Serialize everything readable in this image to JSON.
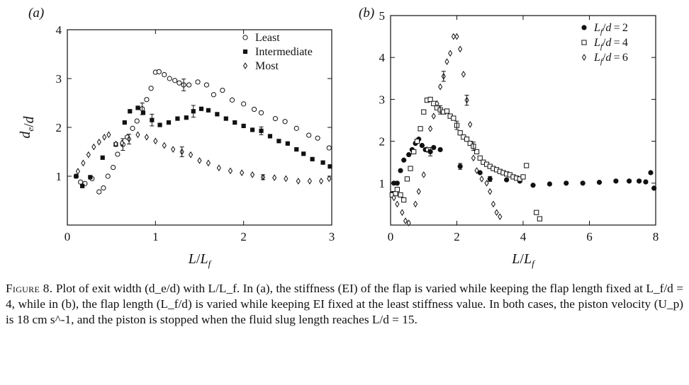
{
  "caption": {
    "label": "Figure 8.",
    "text": "Plot of exit width (d_e/d) with L/L_f. In (a), the stiffness (EI) of the flap is varied while keeping the flap length fixed at L_f/d = 4, while in (b), the flap length (L_f/d) is varied while keeping EI fixed at the least stiffness value. In both cases, the piston velocity (U_p) is 18 cm s^-1, and the piston is stopped when the fluid slug length reaches L/d = 15."
  },
  "chart_data": [
    {
      "type": "scatter",
      "panel_label": "(a)",
      "xlabel": "L/L_f",
      "ylabel": "d_e/d",
      "xlim": [
        0,
        3
      ],
      "ylim": [
        0,
        4
      ],
      "xticks": [
        0,
        1,
        2,
        3
      ],
      "yticks": [
        1,
        2,
        3,
        4
      ],
      "grid": false,
      "legend_position": "top-right",
      "series": [
        {
          "name": "Least",
          "marker": "circle-open",
          "points": [
            [
              0.1,
              1.0
            ],
            [
              0.15,
              0.88
            ],
            [
              0.2,
              0.85
            ],
            [
              0.28,
              0.95
            ],
            [
              0.36,
              0.68
            ],
            [
              0.41,
              0.76
            ],
            [
              0.46,
              1.0
            ],
            [
              0.52,
              1.18
            ],
            [
              0.57,
              1.45
            ],
            [
              0.63,
              1.65
            ],
            [
              0.68,
              1.8
            ],
            [
              0.74,
              1.98
            ],
            [
              0.79,
              2.13
            ],
            [
              0.85,
              2.38
            ],
            [
              0.9,
              2.57
            ],
            [
              0.95,
              2.8
            ],
            [
              1.0,
              3.13
            ],
            [
              1.04,
              3.14
            ],
            [
              1.1,
              3.08
            ],
            [
              1.16,
              3.0
            ],
            [
              1.22,
              2.96
            ],
            [
              1.27,
              2.91
            ],
            [
              1.32,
              2.87
            ],
            [
              1.38,
              2.87
            ],
            [
              1.48,
              2.93
            ],
            [
              1.58,
              2.87
            ],
            [
              1.66,
              2.67
            ],
            [
              1.76,
              2.76
            ],
            [
              1.87,
              2.56
            ],
            [
              2.0,
              2.48
            ],
            [
              2.12,
              2.37
            ],
            [
              2.2,
              2.3
            ],
            [
              2.36,
              2.18
            ],
            [
              2.47,
              2.12
            ],
            [
              2.6,
              1.98
            ],
            [
              2.74,
              1.84
            ],
            [
              2.84,
              1.78
            ],
            [
              2.97,
              1.58
            ]
          ],
          "error_bars": [
            [
              0.63,
              0.12
            ],
            [
              0.85,
              0.12
            ],
            [
              1.3,
              0.12
            ]
          ]
        },
        {
          "name": "Intermediate",
          "marker": "square-filled",
          "points": [
            [
              0.1,
              1.0
            ],
            [
              0.17,
              0.8
            ],
            [
              0.26,
              0.98
            ],
            [
              0.4,
              1.38
            ],
            [
              0.55,
              1.65
            ],
            [
              0.65,
              2.1
            ],
            [
              0.71,
              2.33
            ],
            [
              0.8,
              2.4
            ],
            [
              0.86,
              2.3
            ],
            [
              0.96,
              2.15
            ],
            [
              1.05,
              2.05
            ],
            [
              1.15,
              2.1
            ],
            [
              1.25,
              2.18
            ],
            [
              1.35,
              2.2
            ],
            [
              1.43,
              2.33
            ],
            [
              1.52,
              2.38
            ],
            [
              1.6,
              2.35
            ],
            [
              1.7,
              2.27
            ],
            [
              1.8,
              2.18
            ],
            [
              1.9,
              2.1
            ],
            [
              2.0,
              2.03
            ],
            [
              2.1,
              1.95
            ],
            [
              2.2,
              1.93
            ],
            [
              2.3,
              1.82
            ],
            [
              2.4,
              1.72
            ],
            [
              2.5,
              1.67
            ],
            [
              2.6,
              1.55
            ],
            [
              2.68,
              1.46
            ],
            [
              2.78,
              1.35
            ],
            [
              2.9,
              1.28
            ],
            [
              2.98,
              1.2
            ]
          ],
          "error_bars": [
            [
              0.96,
              0.12
            ],
            [
              1.43,
              0.12
            ],
            [
              2.2,
              0.08
            ]
          ]
        },
        {
          "name": "Most",
          "marker": "diamond-open",
          "points": [
            [
              0.12,
              1.1
            ],
            [
              0.18,
              1.27
            ],
            [
              0.24,
              1.44
            ],
            [
              0.3,
              1.6
            ],
            [
              0.36,
              1.7
            ],
            [
              0.42,
              1.8
            ],
            [
              0.47,
              1.85
            ],
            [
              0.55,
              1.66
            ],
            [
              0.62,
              1.68
            ],
            [
              0.7,
              1.76
            ],
            [
              0.8,
              1.85
            ],
            [
              0.9,
              1.8
            ],
            [
              1.0,
              1.72
            ],
            [
              1.1,
              1.63
            ],
            [
              1.2,
              1.55
            ],
            [
              1.3,
              1.5
            ],
            [
              1.4,
              1.44
            ],
            [
              1.5,
              1.32
            ],
            [
              1.6,
              1.27
            ],
            [
              1.72,
              1.17
            ],
            [
              1.85,
              1.11
            ],
            [
              1.98,
              1.07
            ],
            [
              2.1,
              1.03
            ],
            [
              2.22,
              0.98
            ],
            [
              2.35,
              0.97
            ],
            [
              2.48,
              0.95
            ],
            [
              2.62,
              0.9
            ],
            [
              2.75,
              0.9
            ],
            [
              2.88,
              0.9
            ],
            [
              2.97,
              0.95
            ]
          ],
          "error_bars": [
            [
              0.7,
              0.1
            ],
            [
              1.3,
              0.1
            ],
            [
              2.22,
              0.05
            ]
          ]
        }
      ]
    },
    {
      "type": "scatter",
      "panel_label": "(b)",
      "xlabel": "L/L_f",
      "ylabel": "",
      "xlim": [
        0,
        8
      ],
      "ylim": [
        0,
        5
      ],
      "xticks": [
        0,
        2,
        4,
        6,
        8
      ],
      "yticks": [
        1,
        2,
        3,
        4,
        5
      ],
      "grid": false,
      "legend_position": "top-right",
      "series": [
        {
          "name": "L_f/d = 2",
          "marker": "circle-filled",
          "points": [
            [
              0.05,
              0.75
            ],
            [
              0.1,
              1.0
            ],
            [
              0.2,
              1.0
            ],
            [
              0.3,
              1.3
            ],
            [
              0.4,
              1.55
            ],
            [
              0.55,
              1.68
            ],
            [
              0.65,
              1.8
            ],
            [
              0.75,
              1.95
            ],
            [
              0.85,
              2.05
            ],
            [
              0.95,
              1.9
            ],
            [
              1.05,
              1.8
            ],
            [
              1.2,
              1.75
            ],
            [
              1.3,
              1.85
            ],
            [
              1.5,
              1.8
            ],
            [
              2.1,
              1.4
            ],
            [
              2.7,
              1.25
            ],
            [
              3.0,
              1.1
            ],
            [
              3.5,
              1.08
            ],
            [
              3.9,
              1.05
            ],
            [
              4.3,
              0.95
            ],
            [
              4.8,
              0.98
            ],
            [
              5.3,
              1.0
            ],
            [
              5.8,
              1.0
            ],
            [
              6.3,
              1.02
            ],
            [
              6.8,
              1.05
            ],
            [
              7.2,
              1.05
            ],
            [
              7.5,
              1.05
            ],
            [
              7.7,
              1.03
            ],
            [
              7.85,
              1.25
            ],
            [
              7.95,
              0.88
            ]
          ],
          "error_bars": [
            [
              1.2,
              0.1
            ],
            [
              2.1,
              0.07
            ],
            [
              3.0,
              0.06
            ]
          ]
        },
        {
          "name": "L_f/d = 4",
          "marker": "square-open",
          "points": [
            [
              0.05,
              0.72
            ],
            [
              0.15,
              0.75
            ],
            [
              0.2,
              0.85
            ],
            [
              0.3,
              0.72
            ],
            [
              0.4,
              0.6
            ],
            [
              0.5,
              1.1
            ],
            [
              0.6,
              1.35
            ],
            [
              0.7,
              1.75
            ],
            [
              0.8,
              2.0
            ],
            [
              0.9,
              2.3
            ],
            [
              1.0,
              2.7
            ],
            [
              1.1,
              2.98
            ],
            [
              1.2,
              3.0
            ],
            [
              1.3,
              2.9
            ],
            [
              1.4,
              2.8
            ],
            [
              1.5,
              2.75
            ],
            [
              1.6,
              2.7
            ],
            [
              1.7,
              2.72
            ],
            [
              1.8,
              2.6
            ],
            [
              1.9,
              2.55
            ],
            [
              2.0,
              2.38
            ],
            [
              2.1,
              2.2
            ],
            [
              2.2,
              2.1
            ],
            [
              2.3,
              2.05
            ],
            [
              2.4,
              1.95
            ],
            [
              2.5,
              1.88
            ],
            [
              2.6,
              1.75
            ],
            [
              2.7,
              1.6
            ],
            [
              2.8,
              1.5
            ],
            [
              2.9,
              1.45
            ],
            [
              3.0,
              1.4
            ],
            [
              3.1,
              1.35
            ],
            [
              3.2,
              1.32
            ],
            [
              3.3,
              1.28
            ],
            [
              3.4,
              1.25
            ],
            [
              3.5,
              1.22
            ],
            [
              3.6,
              1.2
            ],
            [
              3.7,
              1.15
            ],
            [
              3.8,
              1.12
            ],
            [
              3.9,
              1.1
            ],
            [
              4.0,
              1.15
            ],
            [
              4.1,
              1.42
            ],
            [
              4.4,
              0.3
            ],
            [
              4.5,
              0.15
            ]
          ],
          "error_bars": [
            [
              1.5,
              0.1
            ],
            [
              2.0,
              0.1
            ],
            [
              2.5,
              0.1
            ]
          ]
        },
        {
          "name": "L_f/d = 6",
          "marker": "diamond-open",
          "points": [
            [
              0.1,
              0.65
            ],
            [
              0.2,
              0.5
            ],
            [
              0.35,
              0.3
            ],
            [
              0.45,
              0.1
            ],
            [
              0.55,
              0.05
            ],
            [
              0.75,
              0.5
            ],
            [
              0.85,
              0.8
            ],
            [
              1.0,
              1.2
            ],
            [
              1.1,
              1.8
            ],
            [
              1.2,
              2.3
            ],
            [
              1.3,
              2.6
            ],
            [
              1.4,
              2.9
            ],
            [
              1.5,
              3.3
            ],
            [
              1.6,
              3.55
            ],
            [
              1.7,
              3.9
            ],
            [
              1.8,
              4.1
            ],
            [
              1.9,
              4.5
            ],
            [
              2.0,
              4.5
            ],
            [
              2.1,
              4.2
            ],
            [
              2.2,
              3.6
            ],
            [
              2.3,
              2.98
            ],
            [
              2.4,
              2.4
            ],
            [
              2.5,
              1.6
            ],
            [
              2.6,
              1.3
            ],
            [
              2.75,
              1.1
            ],
            [
              2.9,
              1.0
            ],
            [
              3.0,
              0.8
            ],
            [
              3.1,
              0.5
            ],
            [
              3.2,
              0.3
            ],
            [
              3.3,
              0.2
            ]
          ],
          "error_bars": [
            [
              1.6,
              0.12
            ],
            [
              2.3,
              0.12
            ]
          ]
        }
      ]
    }
  ]
}
